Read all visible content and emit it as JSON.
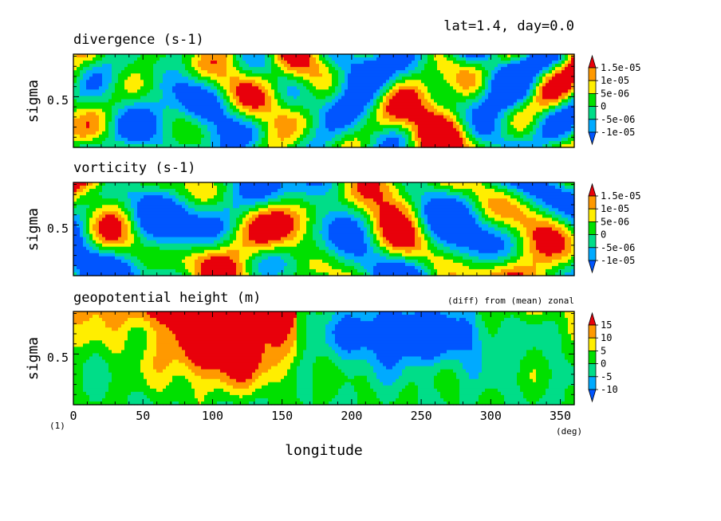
{
  "figure_label": "lat=1.4, day=0.0",
  "chart_data": [
    {
      "type": "heatmap",
      "title": "divergence (s-1)",
      "ylabel": "sigma",
      "xlim": [
        0,
        360
      ],
      "yticks": [
        "0.5"
      ],
      "colorbar": {
        "levels": [
          "1.5e-05",
          "1e-05",
          "5e-06",
          "0",
          "-5e-06",
          "-1e-05"
        ],
        "colors": [
          "#e8000b",
          "#ff9900",
          "#ffee00",
          "#00e000",
          "#00dd88",
          "#00aaff",
          "#0055ff"
        ]
      }
    },
    {
      "type": "heatmap",
      "title": "vorticity (s-1)",
      "ylabel": "sigma",
      "xlim": [
        0,
        360
      ],
      "yticks": [
        "0.5"
      ],
      "colorbar": {
        "levels": [
          "1.5e-05",
          "1e-05",
          "5e-06",
          "0",
          "-5e-06",
          "-1e-05"
        ],
        "colors": [
          "#e8000b",
          "#ff9900",
          "#ffee00",
          "#00e000",
          "#00dd88",
          "#00aaff",
          "#0055ff"
        ]
      }
    },
    {
      "type": "heatmap",
      "title": "geopotential height (m)",
      "subtitle": "(diff) from (mean) zonal",
      "ylabel": "sigma",
      "xlabel": "longitude",
      "xunit": "(deg)",
      "corner_label": "(1)",
      "xlim": [
        0,
        360
      ],
      "xticks": [
        "0",
        "50",
        "100",
        "150",
        "200",
        "250",
        "300",
        "350"
      ],
      "yticks": [
        "0.5"
      ],
      "colorbar": {
        "levels": [
          "15",
          "10",
          "5",
          "0",
          "-5",
          "-10"
        ],
        "colors": [
          "#e8000b",
          "#ff9900",
          "#ffee00",
          "#00e000",
          "#00dd88",
          "#00aaff",
          "#0055ff"
        ]
      }
    }
  ]
}
